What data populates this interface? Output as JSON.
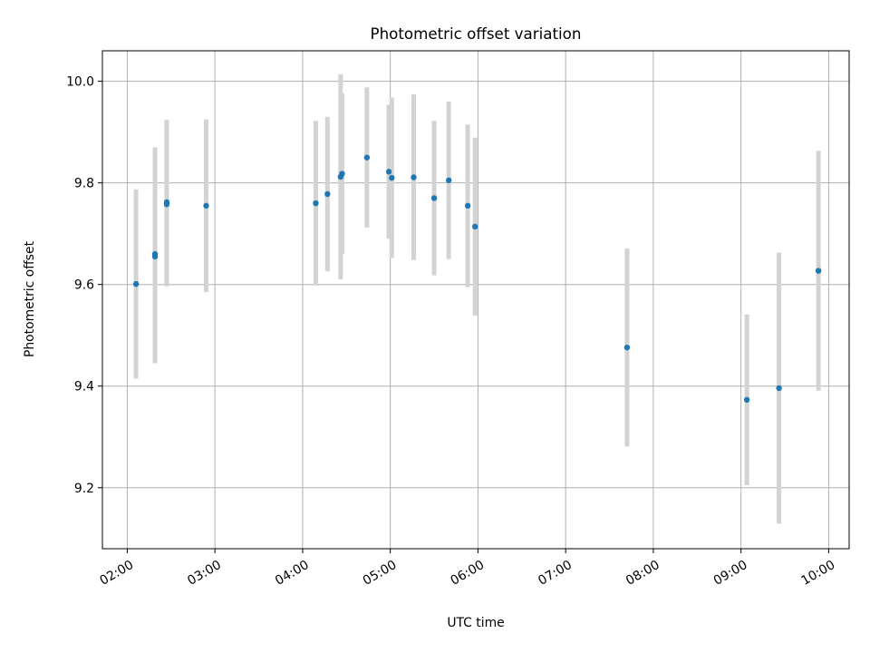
{
  "chart_data": {
    "type": "scatter",
    "title": "Photometric offset variation",
    "xlabel": "UTC time",
    "ylabel": "Photometric offset",
    "xlim": [
      "01:43",
      "10:14"
    ],
    "ylim": [
      9.08,
      10.06
    ],
    "x_ticks": [
      "02:00",
      "03:00",
      "04:00",
      "05:00",
      "06:00",
      "07:00",
      "08:00",
      "09:00",
      "10:00"
    ],
    "y_ticks": [
      9.2,
      9.4,
      9.6,
      9.8,
      10.0
    ],
    "y_tick_labels": [
      "9.2",
      "9.4",
      "9.6",
      "9.8",
      "10.0"
    ],
    "grid": true,
    "colors": {
      "points": "#1f77b4",
      "error_bars": "#d3d3d3",
      "grid": "#b0b0b0"
    },
    "points": [
      {
        "x": "02:06",
        "y": 9.601,
        "yerr": 0.186
      },
      {
        "x": "02:19",
        "y": 9.66,
        "yerr": 0.21
      },
      {
        "x": "02:19",
        "y": 9.655,
        "yerr": 0.21
      },
      {
        "x": "02:27",
        "y": 9.762,
        "yerr": 0.162
      },
      {
        "x": "02:27",
        "y": 9.758,
        "yerr": 0.162
      },
      {
        "x": "02:54",
        "y": 9.755,
        "yerr": 0.17
      },
      {
        "x": "04:09",
        "y": 9.76,
        "yerr": 0.162
      },
      {
        "x": "04:17",
        "y": 9.778,
        "yerr": 0.152
      },
      {
        "x": "04:26",
        "y": 9.812,
        "yerr": 0.202
      },
      {
        "x": "04:27",
        "y": 9.818,
        "yerr": 0.158
      },
      {
        "x": "04:44",
        "y": 9.85,
        "yerr": 0.138
      },
      {
        "x": "04:59",
        "y": 9.822,
        "yerr": 0.132
      },
      {
        "x": "05:01",
        "y": 9.81,
        "yerr": 0.158
      },
      {
        "x": "05:16",
        "y": 9.811,
        "yerr": 0.163
      },
      {
        "x": "05:30",
        "y": 9.77,
        "yerr": 0.152
      },
      {
        "x": "05:40",
        "y": 9.805,
        "yerr": 0.155
      },
      {
        "x": "05:53",
        "y": 9.755,
        "yerr": 0.16
      },
      {
        "x": "05:58",
        "y": 9.714,
        "yerr": 0.175
      },
      {
        "x": "07:42",
        "y": 9.476,
        "yerr": 0.195
      },
      {
        "x": "09:04",
        "y": 9.373,
        "yerr": 0.168
      },
      {
        "x": "09:26",
        "y": 9.396,
        "yerr": 0.267
      },
      {
        "x": "09:53",
        "y": 9.627,
        "yerr": 0.236
      }
    ]
  }
}
